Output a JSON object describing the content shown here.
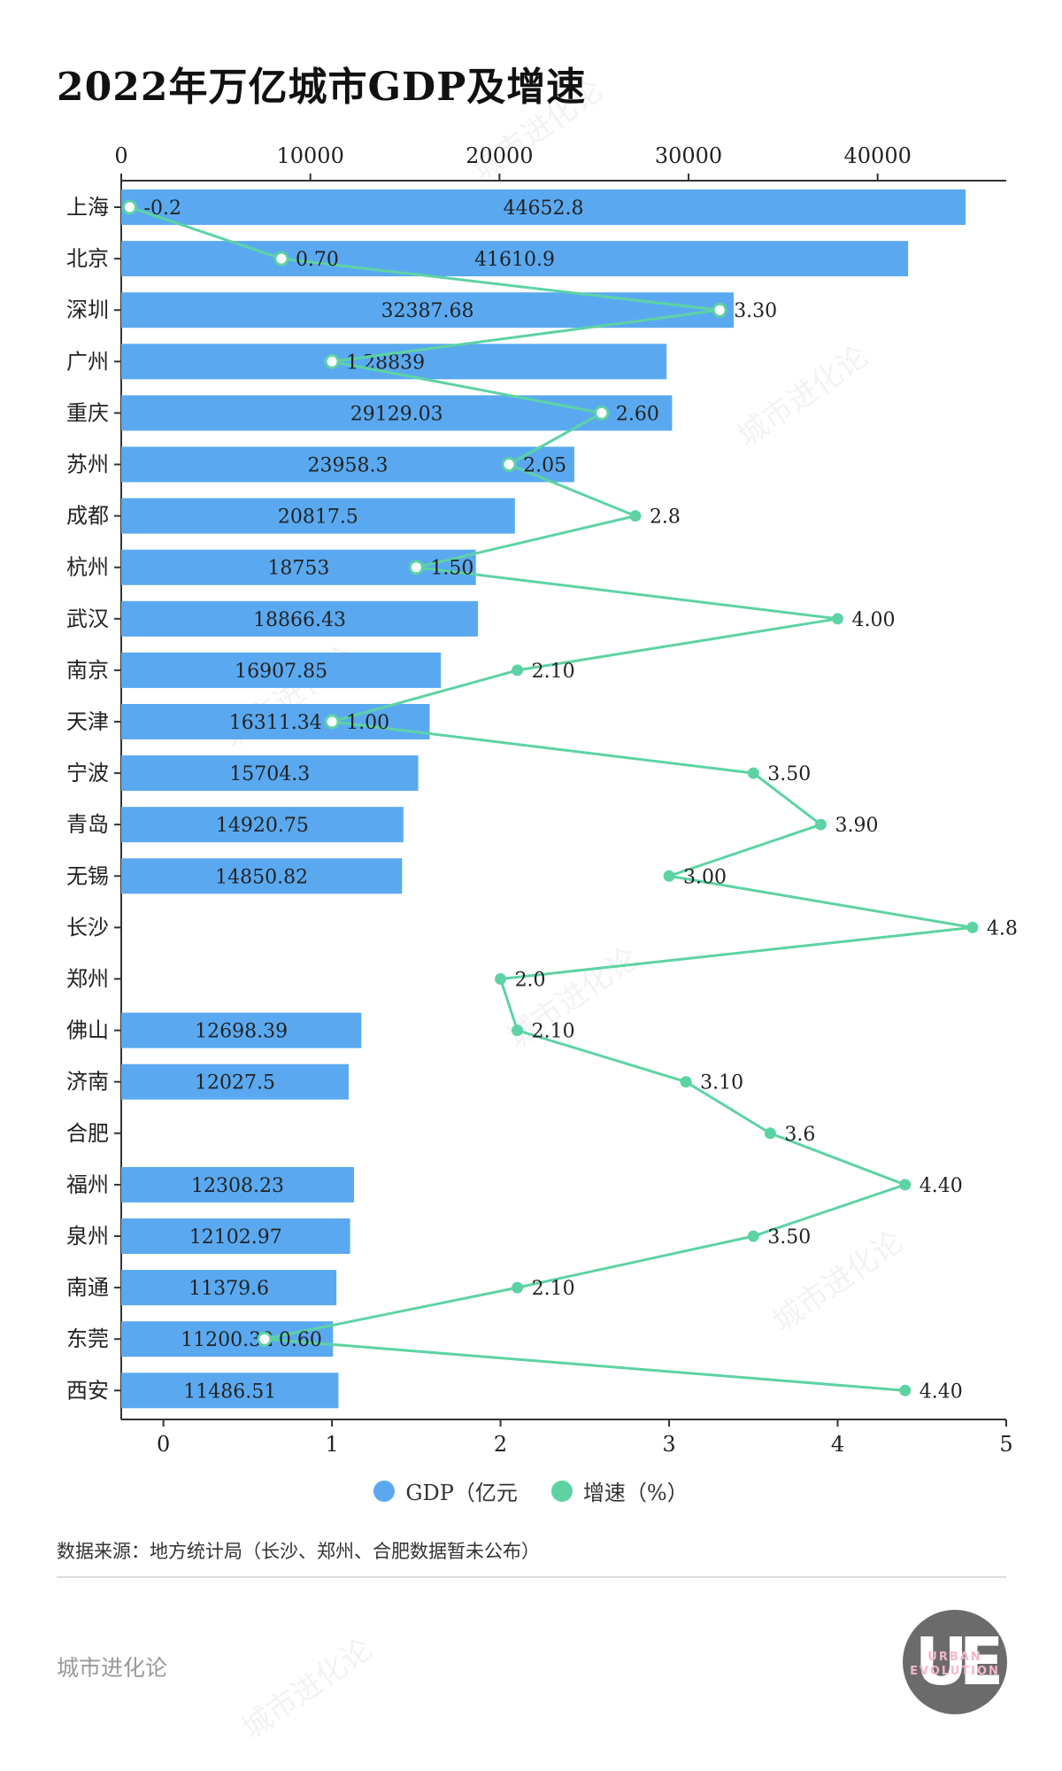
{
  "title": "2022年万亿城市GDP及增速",
  "legend": {
    "gdp_label": "GDP（亿元",
    "growth_label": "增速（%）"
  },
  "source_note": "数据来源：地方统计局（长沙、郑州、合肥数据暂未公布）",
  "brand": "城市进化论",
  "logo": {
    "letters": "UE",
    "line1": "URBAN",
    "line2": "EVOLUTION"
  },
  "watermark": "城市进化论",
  "colors": {
    "bar": "#5aa9f0",
    "growth_line": "#5dd3a4",
    "axis": "#333333"
  },
  "chart_data": {
    "type": "bar",
    "orientation": "horizontal",
    "categories": [
      "上海",
      "北京",
      "深圳",
      "广州",
      "重庆",
      "苏州",
      "成都",
      "杭州",
      "武汉",
      "南京",
      "天津",
      "宁波",
      "青岛",
      "无锡",
      "长沙",
      "郑州",
      "佛山",
      "济南",
      "合肥",
      "福州",
      "泉州",
      "南通",
      "东莞",
      "西安"
    ],
    "series": [
      {
        "name": "GDP（亿元",
        "axis": "top",
        "values": [
          44652.8,
          41610.9,
          32387.68,
          28839,
          29129.03,
          23958.3,
          20817.5,
          18753,
          18866.43,
          16907.85,
          16311.34,
          15704.3,
          14920.75,
          14850.82,
          null,
          null,
          12698.39,
          12027.5,
          null,
          12308.23,
          12102.97,
          11379.6,
          11200.32,
          11486.51
        ],
        "labels": [
          "44652.8",
          "41610.9",
          "32387.68",
          "28839",
          "29129.03",
          "23958.3",
          "20817.5",
          "18753",
          "18866.43",
          "16907.85",
          "16311.34",
          "15704.3",
          "14920.75",
          "14850.82",
          "",
          "",
          "12698.39",
          "12027.5",
          "",
          "12308.23",
          "12102.97",
          "11379.6",
          "11200.32",
          "11486.51"
        ]
      },
      {
        "name": "增速（%）",
        "axis": "bottom",
        "type": "line",
        "values": [
          -0.2,
          0.7,
          3.3,
          1,
          2.6,
          2.05,
          2.8,
          1.5,
          4.0,
          2.1,
          1.0,
          3.5,
          3.9,
          3.0,
          4.8,
          2.0,
          2.1,
          3.1,
          3.6,
          4.4,
          3.5,
          2.1,
          0.6,
          4.4
        ],
        "labels": [
          "-0.2",
          "0.70",
          "3.30",
          "1",
          "2.60",
          "2.05",
          "2.8",
          "1.50",
          "4.00",
          "2.10",
          "1.00",
          "3.50",
          "3.90",
          "3.00",
          "4.8",
          "2.0",
          "2.10",
          "3.10",
          "3.6",
          "4.40",
          "3.50",
          "2.10",
          "0.60",
          "4.40"
        ]
      }
    ],
    "x_top": {
      "min": 0,
      "max": 46800,
      "ticks": [
        0,
        10000,
        20000,
        30000,
        40000
      ]
    },
    "x_bottom": {
      "min": -0.25,
      "max": 5,
      "ticks": [
        0,
        1,
        2,
        3,
        4,
        5
      ]
    },
    "grid": false,
    "legend_position": "bottom-center"
  }
}
